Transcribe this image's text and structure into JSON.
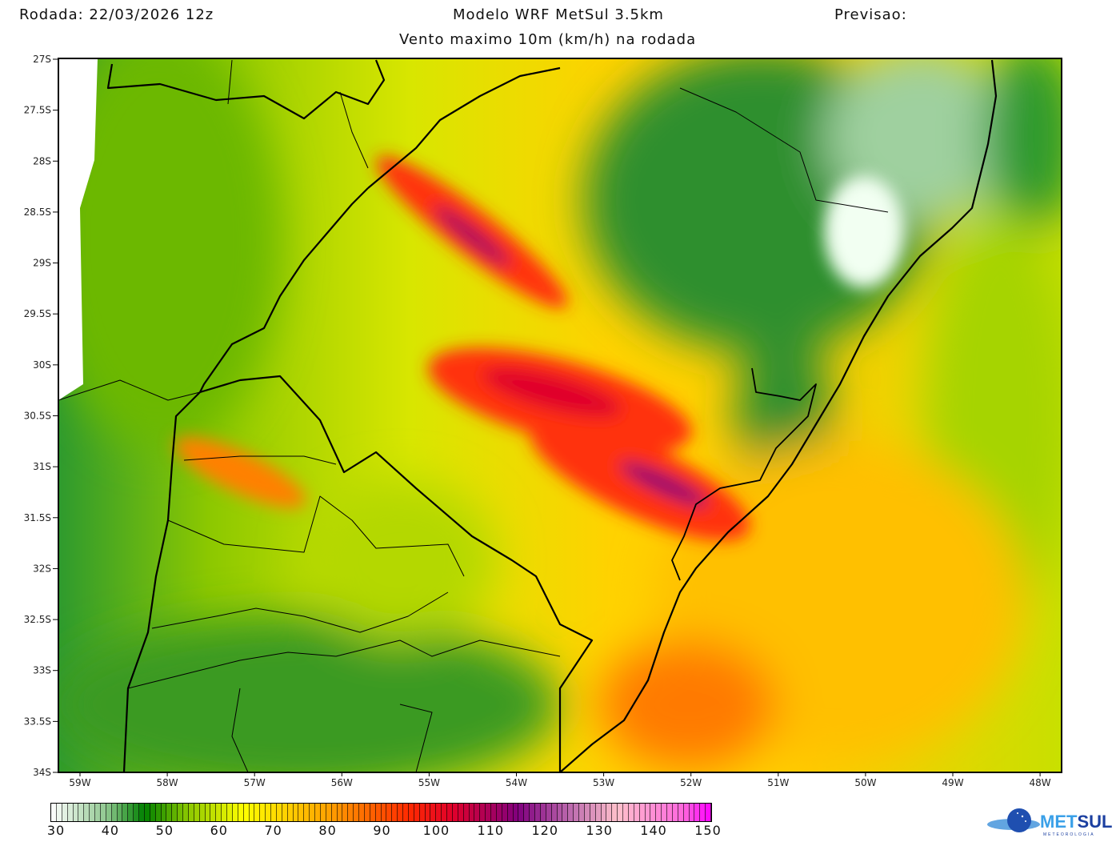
{
  "header": {
    "run": "Rodada: 22/03/2026 12z",
    "model": "Modelo WRF MetSul 3.5km",
    "forecast": "Previsao:",
    "subtitle": "Vento maximo 10m (km/h) na rodada"
  },
  "map": {
    "lat_labels": [
      "27S",
      "27.5S",
      "28S",
      "28.5S",
      "29S",
      "29.5S",
      "30S",
      "30.5S",
      "31S",
      "31.5S",
      "32S",
      "32.5S",
      "33S",
      "33.5S",
      "34S"
    ],
    "lon_labels": [
      "59W",
      "58W",
      "57W",
      "56W",
      "55W",
      "54W",
      "53W",
      "52W",
      "51W",
      "50W",
      "49W",
      "48W"
    ],
    "lat_range": [
      -34,
      -27
    ],
    "lon_range": [
      -59.25,
      -47.75
    ]
  },
  "colorbar": {
    "min": 30,
    "max": 150,
    "step": 1,
    "labels": [
      "30",
      "40",
      "50",
      "60",
      "70",
      "80",
      "90",
      "100",
      "110",
      "120",
      "130",
      "140",
      "150"
    ],
    "stops": [
      [
        30,
        "#ffffff"
      ],
      [
        40,
        "#90c890"
      ],
      [
        47,
        "#008000"
      ],
      [
        55,
        "#8cc800"
      ],
      [
        65,
        "#ffff00"
      ],
      [
        80,
        "#ffa500"
      ],
      [
        95,
        "#ff2a00"
      ],
      [
        103,
        "#e0002a"
      ],
      [
        115,
        "#80007e"
      ],
      [
        125,
        "#c070b0"
      ],
      [
        133,
        "#ffc0cb"
      ],
      [
        145,
        "#ff66dd"
      ],
      [
        150,
        "#ff00ff"
      ]
    ]
  },
  "logo": {
    "text_a": "MET",
    "text_b": "SUL",
    "tagline": "METEOROLOGIA"
  }
}
